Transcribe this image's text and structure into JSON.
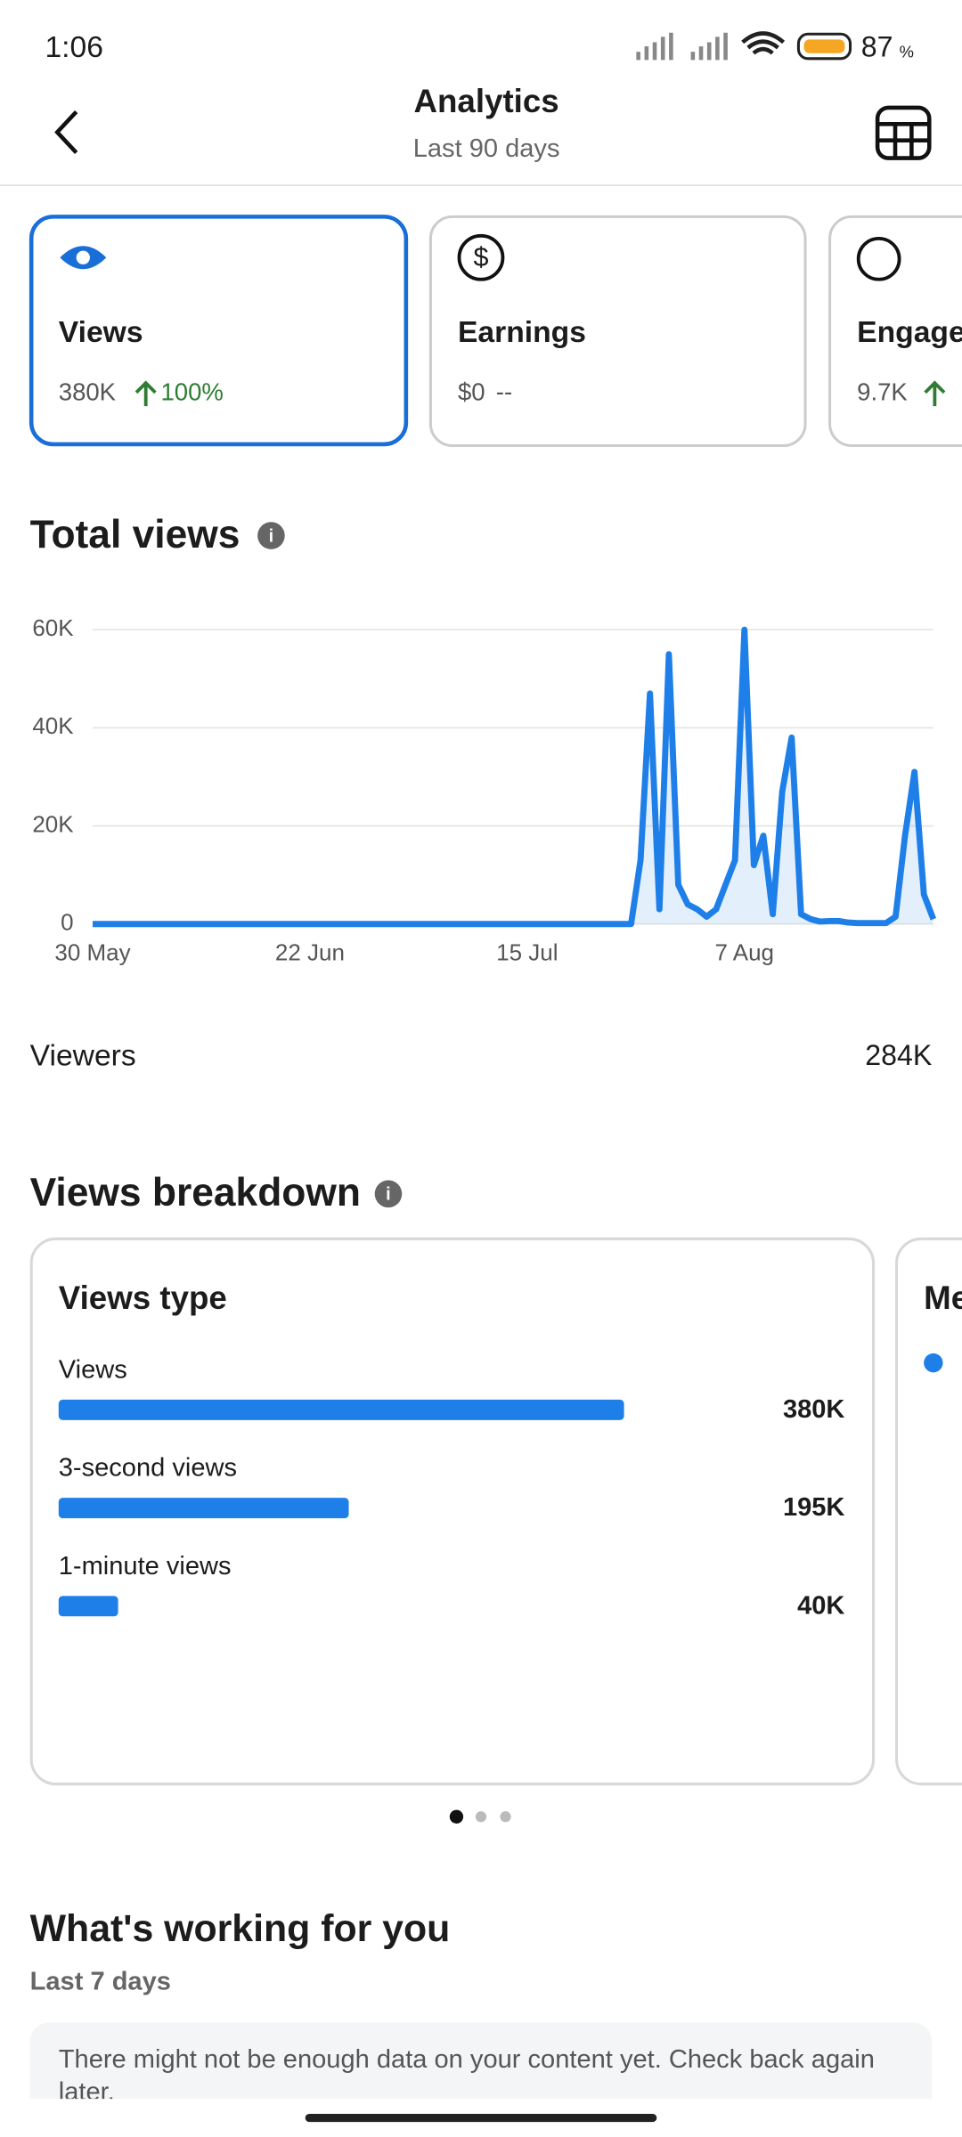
{
  "status_bar": {
    "time": "1:06",
    "battery": "87",
    "battery_unit": "%"
  },
  "header": {
    "title": "Analytics",
    "subtitle": "Last 90 days"
  },
  "metric_cards": [
    {
      "label": "Views",
      "value": "380K",
      "change": "100%"
    },
    {
      "label": "Earnings",
      "value": "$0",
      "change": "--"
    },
    {
      "label": "Engage",
      "value": "9.7K"
    }
  ],
  "chart_data": [
    {
      "type": "line",
      "title": "Total views",
      "x": [
        0,
        1,
        2,
        3,
        4,
        5,
        6,
        7,
        8,
        9,
        10,
        11,
        12,
        13,
        14,
        15,
        16,
        17,
        18,
        19,
        20,
        21,
        22,
        23,
        24,
        25,
        26,
        27,
        28,
        29,
        30,
        31,
        32,
        33,
        34,
        35,
        36,
        37,
        38,
        39,
        40,
        41,
        42,
        43,
        44,
        45,
        46,
        47,
        48,
        49,
        50,
        51,
        52,
        53,
        54,
        55,
        56,
        57,
        58,
        59,
        60,
        61,
        62,
        63,
        64,
        65,
        66,
        67,
        68,
        69,
        70,
        71,
        72,
        73,
        74,
        75,
        76,
        77,
        78,
        79,
        80,
        81,
        82,
        83,
        84,
        85,
        86,
        87,
        88,
        89
      ],
      "values": [
        0,
        0,
        0,
        0,
        0,
        0,
        0,
        0,
        0,
        0,
        0,
        0,
        0,
        0,
        0,
        0,
        0,
        0,
        0,
        0,
        0,
        0,
        0,
        0,
        0,
        0,
        0,
        0,
        0,
        0,
        0,
        0,
        0,
        0,
        0,
        0,
        0,
        0,
        0,
        0,
        0,
        0,
        0,
        0,
        0,
        0,
        0,
        0,
        0,
        0,
        0,
        0,
        0,
        0,
        0,
        0,
        0,
        0,
        13000,
        47000,
        3000,
        55000,
        8000,
        4000,
        3000,
        1500,
        3000,
        8000,
        13000,
        60000,
        12000,
        18000,
        2000,
        27000,
        38000,
        2000,
        1000,
        500,
        600,
        600,
        300,
        200,
        200,
        200,
        200,
        1500,
        18000,
        31000,
        6000,
        1000
      ],
      "color": "#1f7fe8",
      "xlim": [
        0,
        89
      ],
      "xticks": [
        {
          "value": 0,
          "label": "30 May"
        },
        {
          "value": 23,
          "label": "22 Jun"
        },
        {
          "value": 46,
          "label": "15 Jul"
        },
        {
          "value": 69,
          "label": "7 Aug"
        }
      ],
      "ylim": [
        0,
        60000
      ],
      "yticks": [
        0,
        {
          "value": 20000,
          "label": "20K"
        },
        {
          "value": 40000,
          "label": "40K"
        },
        {
          "value": 60000,
          "label": "60K"
        }
      ],
      "grid": true
    },
    {
      "type": "bar",
      "orientation": "horizontal",
      "title": "Views type",
      "categories": [
        "Views",
        "3-second views",
        "1-minute views"
      ],
      "values": [
        380000,
        195000,
        40000
      ],
      "value_labels": [
        "380K",
        "195K",
        "40K"
      ],
      "color": "#1f7fe8",
      "xlim": [
        0,
        380000
      ]
    }
  ],
  "viewers": {
    "label": "Viewers",
    "value": "284K"
  },
  "breakdown": {
    "title": "Views breakdown",
    "next_card_title": "Me"
  },
  "working": {
    "title": "What's working for you",
    "subtitle": "Last 7 days",
    "message": "There might not be enough data on your content yet. Check back again later."
  }
}
